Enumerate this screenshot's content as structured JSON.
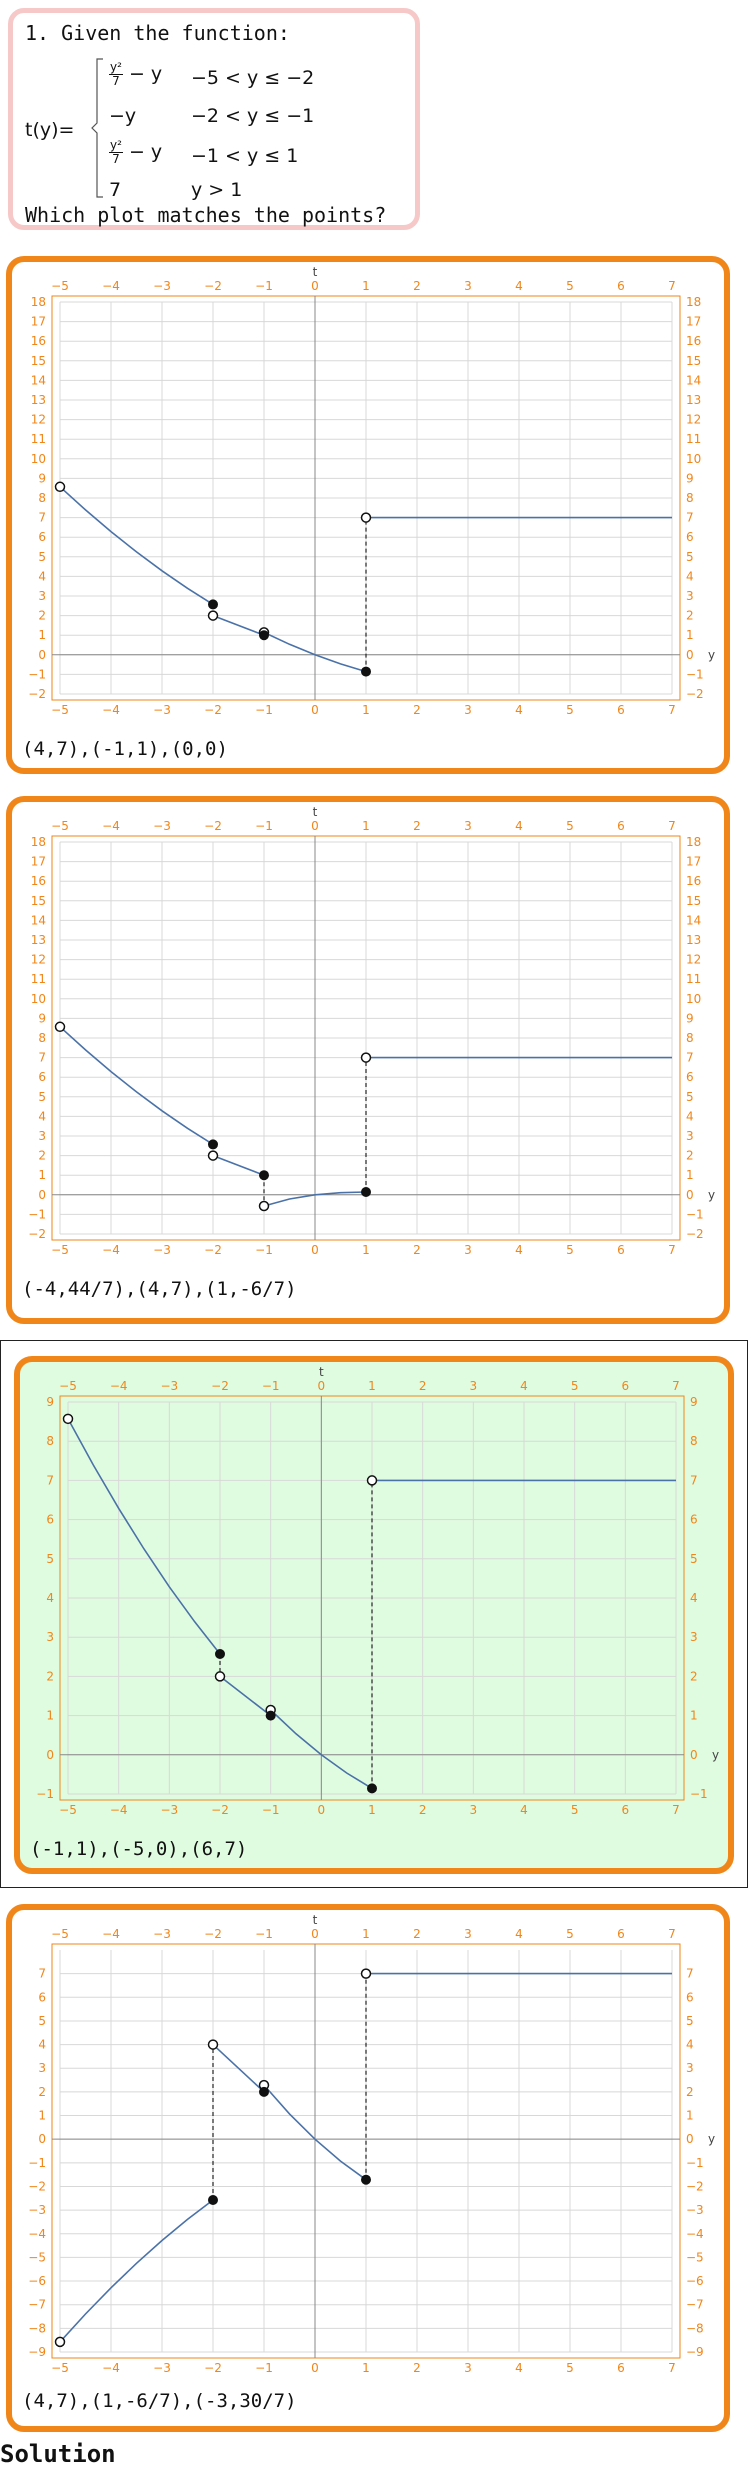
{
  "question": {
    "intro": "1. Given the function:",
    "fname": "t(y)=",
    "pieces": [
      {
        "expr_num": "y²",
        "expr_den": "7",
        "expr_tail": " − y",
        "cond": "−5 < y ≤ −2"
      },
      {
        "expr": "−y",
        "cond": "−2 < y ≤ −1"
      },
      {
        "expr_num": "y²",
        "expr_den": "7",
        "expr_tail": " − y",
        "cond": "−1 < y ≤ 1"
      },
      {
        "expr": "7",
        "cond": "y > 1"
      }
    ],
    "prompt": "Which plot matches the points?"
  },
  "colors": {
    "accent": "#f0861a",
    "curve": "#4a72a8",
    "selected_bg": "#e0fce0",
    "question_border": "#f6c8c8"
  },
  "options": [
    {
      "points_text": "(4,7),(-1,1),(0,0)",
      "selected": false,
      "chart_data": {
        "type": "line",
        "xlabel": "y",
        "ylabel": "t",
        "xlim": [
          -5,
          7
        ],
        "ylim": [
          -2,
          18
        ],
        "xticks": [
          -5,
          -4,
          -3,
          -2,
          -1,
          0,
          1,
          2,
          3,
          4,
          5,
          6,
          7
        ],
        "yticks": [
          -2,
          -1,
          0,
          1,
          2,
          3,
          4,
          5,
          6,
          7,
          8,
          9,
          10,
          11,
          12,
          13,
          14,
          15,
          16,
          17,
          18
        ],
        "series": [
          {
            "x": [
              -5,
              -4.5,
              -4,
              -3.5,
              -3,
              -2.5,
              -2
            ],
            "y": [
              8.571,
              7.393,
              6.286,
              5.25,
              4.286,
              3.393,
              2.571
            ]
          },
          {
            "x": [
              -2,
              -1
            ],
            "y": [
              2,
              1
            ]
          },
          {
            "x": [
              -1,
              -0.5,
              0,
              0.5,
              1
            ],
            "y": [
              1.143,
              0.536,
              0,
              -0.464,
              -0.857
            ]
          },
          {
            "x": [
              1,
              7
            ],
            "y": [
              7,
              7
            ]
          }
        ],
        "open_points": [
          [
            -5,
            8.571
          ],
          [
            -2,
            2
          ],
          [
            -1,
            1.143
          ],
          [
            1,
            7
          ]
        ],
        "closed_points": [
          [
            -2,
            2.571
          ],
          [
            -1,
            1
          ],
          [
            1,
            -0.857
          ]
        ],
        "dashed": [
          [
            -2,
            2.571,
            2
          ],
          [
            -1,
            1,
            1.143
          ],
          [
            1,
            -0.857,
            7
          ]
        ]
      }
    },
    {
      "points_text": "(-4,44/7),(4,7),(1,-6/7)",
      "selected": false,
      "chart_data": {
        "type": "line",
        "xlabel": "y",
        "ylabel": "t",
        "xlim": [
          -5,
          7
        ],
        "ylim": [
          -2,
          18
        ],
        "xticks": [
          -5,
          -4,
          -3,
          -2,
          -1,
          0,
          1,
          2,
          3,
          4,
          5,
          6,
          7
        ],
        "yticks": [
          -2,
          -1,
          0,
          1,
          2,
          3,
          4,
          5,
          6,
          7,
          8,
          9,
          10,
          11,
          12,
          13,
          14,
          15,
          16,
          17,
          18
        ],
        "series": [
          {
            "x": [
              -5,
              -4.5,
              -4,
              -3.5,
              -3,
              -2.5,
              -2
            ],
            "y": [
              8.571,
              7.393,
              6.286,
              5.25,
              4.286,
              3.393,
              2.571
            ]
          },
          {
            "x": [
              -2,
              -1
            ],
            "y": [
              2,
              1
            ]
          },
          {
            "x": [
              -1,
              -0.5,
              0,
              0.5,
              1
            ],
            "y": [
              -0.571,
              -0.214,
              0,
              0.107,
              0.143
            ]
          },
          {
            "x": [
              1,
              7
            ],
            "y": [
              7,
              7
            ]
          }
        ],
        "open_points": [
          [
            -5,
            8.571
          ],
          [
            -2,
            2
          ],
          [
            -1,
            -0.571
          ],
          [
            1,
            7
          ]
        ],
        "closed_points": [
          [
            -2,
            2.571
          ],
          [
            -1,
            1
          ],
          [
            1,
            0.143
          ]
        ],
        "dashed": [
          [
            -2,
            2.571,
            2
          ],
          [
            -1,
            1,
            -0.571
          ],
          [
            1,
            0.143,
            7
          ]
        ]
      }
    },
    {
      "points_text": "(-1,1),(-5,0),(6,7)",
      "selected": true,
      "chart_data": {
        "type": "line",
        "xlabel": "y",
        "ylabel": "t",
        "xlim": [
          -5,
          7
        ],
        "ylim": [
          -1,
          9
        ],
        "xticks": [
          -5,
          -4,
          -3,
          -2,
          -1,
          0,
          1,
          2,
          3,
          4,
          5,
          6,
          7
        ],
        "yticks": [
          -1,
          0,
          1,
          2,
          3,
          4,
          5,
          6,
          7,
          8,
          9
        ],
        "series": [
          {
            "x": [
              -5,
              -4.5,
              -4,
              -3.5,
              -3,
              -2.5,
              -2
            ],
            "y": [
              8.571,
              7.393,
              6.286,
              5.25,
              4.286,
              3.393,
              2.571
            ]
          },
          {
            "x": [
              -2,
              -1
            ],
            "y": [
              2,
              1
            ]
          },
          {
            "x": [
              -1,
              -0.5,
              0,
              0.5,
              1
            ],
            "y": [
              1.143,
              0.536,
              0,
              -0.464,
              -0.857
            ]
          },
          {
            "x": [
              1,
              7
            ],
            "y": [
              7,
              7
            ]
          }
        ],
        "open_points": [
          [
            -5,
            8.571
          ],
          [
            -2,
            2
          ],
          [
            -1,
            1.143
          ],
          [
            1,
            7
          ]
        ],
        "closed_points": [
          [
            -2,
            2.571
          ],
          [
            -1,
            1
          ],
          [
            1,
            -0.857
          ]
        ],
        "dashed": [
          [
            -2,
            2.571,
            2
          ],
          [
            -1,
            1,
            1.143
          ],
          [
            1,
            -0.857,
            7
          ]
        ]
      }
    },
    {
      "points_text": "(4,7),(1,-6/7),(-3,30/7)",
      "selected": false,
      "chart_data": {
        "type": "line",
        "xlabel": "y",
        "ylabel": "t",
        "xlim": [
          -5,
          7
        ],
        "ylim": [
          -9,
          8
        ],
        "xticks": [
          -5,
          -4,
          -3,
          -2,
          -1,
          0,
          1,
          2,
          3,
          4,
          5,
          6,
          7
        ],
        "yticks": [
          -9,
          -8,
          -7,
          -6,
          -5,
          -4,
          -3,
          -2,
          -1,
          0,
          1,
          2,
          3,
          4,
          5,
          6,
          7
        ],
        "series": [
          {
            "x": [
              -5,
              -4.5,
              -4,
              -3.5,
              -3,
              -2.5,
              -2
            ],
            "y": [
              -8.571,
              -7.393,
              -6.286,
              -5.25,
              -4.286,
              -3.393,
              -2.571
            ]
          },
          {
            "x": [
              -2,
              -1
            ],
            "y": [
              4,
              2
            ]
          },
          {
            "x": [
              -1,
              -0.5,
              0,
              0.5,
              1
            ],
            "y": [
              2.286,
              1.071,
              0,
              -0.929,
              -1.714
            ]
          },
          {
            "x": [
              1,
              7
            ],
            "y": [
              7,
              7
            ]
          }
        ],
        "open_points": [
          [
            -5,
            -8.571
          ],
          [
            -2,
            4
          ],
          [
            -1,
            2.286
          ],
          [
            1,
            7
          ]
        ],
        "closed_points": [
          [
            -2,
            -2.571
          ],
          [
            -1,
            2
          ],
          [
            1,
            -1.714
          ]
        ],
        "dashed": [
          [
            -2,
            -2.571,
            4
          ],
          [
            -1,
            2,
            2.286
          ],
          [
            1,
            -1.714,
            7
          ]
        ]
      }
    }
  ],
  "solution_label": "Solution"
}
